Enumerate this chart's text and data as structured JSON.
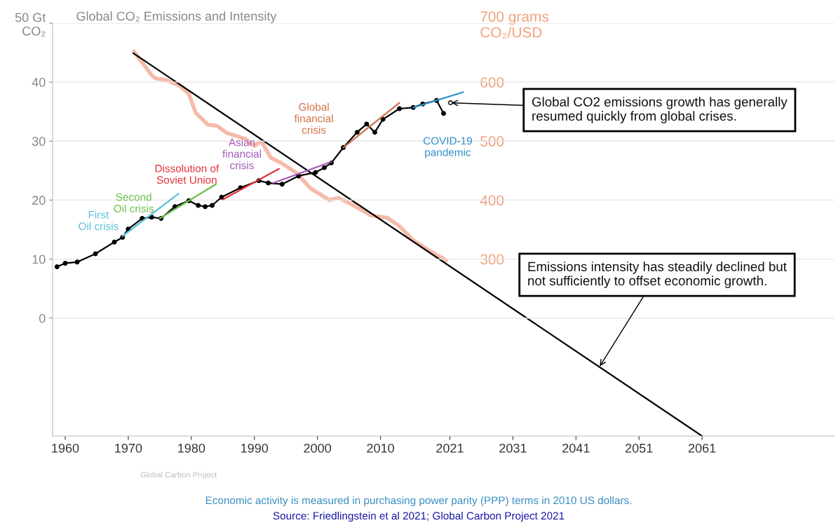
{
  "chart_data": {
    "type": "line",
    "title": "Global CO₂ Emissions and Intensity",
    "xlim": [
      1958,
      2082
    ],
    "xticks": [
      1960,
      1970,
      1980,
      1990,
      2000,
      2010,
      2021,
      2031,
      2041,
      2051,
      2061
    ],
    "ylim": [
      -20,
      50
    ],
    "yticks": [
      0,
      10,
      20,
      30,
      40,
      {
        "value": 50,
        "label": "50 Gt\nCO₂"
      }
    ],
    "y2lim": [
      0,
      700
    ],
    "y2ticks": [
      300,
      400,
      500,
      600,
      {
        "value": 700,
        "label": "700 grams\nCO₂/USD"
      }
    ],
    "grid": "y",
    "series": [
      {
        "color": "#000000",
        "marker": "circle",
        "x": [
          1958.7,
          1960,
          1961.9,
          1964.8,
          1967.8,
          1969.1,
          1970,
          1972.2,
          1973.7,
          1975.2,
          1977.4,
          1979.6,
          1981.1,
          1982.2,
          1983.3,
          1984.8,
          1987.8,
          1990.7,
          1992.2,
          1994.4,
          1997,
          1999.7,
          2001.1,
          2002.2,
          2004.1,
          2006.3,
          2007.8,
          2009.1,
          2010.4,
          2013,
          2015.2,
          2016.7,
          2018.9,
          2020
        ],
        "values": [
          8.7,
          9.3,
          9.5,
          10.9,
          12.9,
          13.7,
          15.1,
          16.9,
          17.1,
          16.9,
          18.9,
          19.9,
          19.1,
          18.9,
          19.1,
          20.5,
          22.1,
          23.3,
          22.9,
          22.7,
          24.1,
          24.7,
          25.5,
          26.3,
          28.9,
          31.5,
          32.9,
          31.5,
          33.7,
          35.5,
          35.7,
          36.3,
          36.9,
          34.7
        ]
      },
      {
        "color": "#000000",
        "marker": "open circle",
        "x": [
          2021.1
        ],
        "values": [
          36.5
        ]
      },
      {
        "color": "#f5bba9",
        "axis": "y2",
        "x": [
          1970.9,
          1973.7,
          1974.4,
          1975.9,
          1978.1,
          1979.6,
          1980.7,
          1982.6,
          1984.1,
          1985.6,
          1988.5,
          1990,
          1991.1,
          1992.6,
          1994.4,
          1996.7,
          1998.9,
          2001.9,
          2003.3,
          2005.6,
          2008.5,
          2011.1,
          2013,
          2015.2,
          2018.1,
          2020.4
        ],
        "values": [
          652,
          612,
          606,
          604,
          594,
          580,
          548,
          528,
          526,
          514,
          504,
          492,
          500,
          472,
          462,
          446,
          420,
          400,
          404,
          392,
          374,
          370,
          356,
          332,
          312,
          298
        ]
      },
      {
        "color": "#000000",
        "axis": "y2",
        "x": [
          1970.8,
          2061
        ],
        "values": [
          649,
          0
        ]
      },
      {
        "name": "First\nOil crisis",
        "color": "#5bbfdc",
        "x": [
          1969.1,
          1978
        ],
        "values": [
          13.9,
          21.1
        ]
      },
      {
        "name": "Second\nOil crisis",
        "color": "#6cc04a",
        "x": [
          1975,
          1983.9
        ],
        "values": [
          16.9,
          22.7
        ]
      },
      {
        "name": "Dissolution of\nSoviet Union",
        "color": "#e0303a",
        "x": [
          1985,
          1993.9
        ],
        "values": [
          20.1,
          25.3
        ]
      },
      {
        "name": "Asian\nfinancial\ncrisis",
        "color": "#a55ab5",
        "x": [
          1993,
          2002.2
        ],
        "values": [
          22.9,
          26.5
        ]
      },
      {
        "name": "Global\nfinancial\ncrisis",
        "color": "#d2734a",
        "x": [
          2004.1,
          2013
        ],
        "values": [
          28.9,
          36.5
        ]
      },
      {
        "name": "COVID-19\npandemic",
        "color": "#2f8fc8",
        "x": [
          2015.2,
          2023.1
        ],
        "values": [
          35.7,
          38.3
        ]
      }
    ],
    "annotations": [
      {
        "text": "Global CO2 emissions growth has generally\nresumed quickly from global crises.",
        "x": 2021.1,
        "y": 36.5
      },
      {
        "text": "Emissions intensity has steadily declined but\nnot sufficiently to offset economic growth.",
        "x": 2044.7,
        "y": -8.3
      },
      "Global Carbon Project",
      "Economic activity is measured in purchasing power parity (PPP) terms in 2010 US dollars.",
      "Source: Friedlingstein et al 2021; Global Carbon Project 2021"
    ]
  }
}
